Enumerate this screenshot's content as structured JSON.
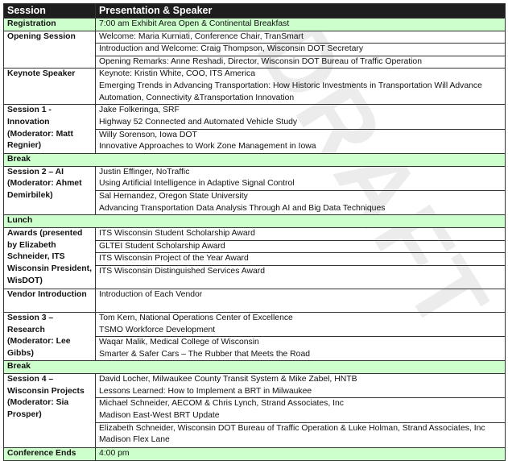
{
  "watermark": "DRAFT",
  "header": {
    "session": "Session",
    "presentation": "Presentation & Speaker"
  },
  "rows": [
    {
      "type": "highlight",
      "session": "Registration",
      "items": [
        [
          "7:00 am Exhibit Area Open & Continental Breakfast"
        ]
      ]
    },
    {
      "type": "section",
      "session": "Opening Session",
      "items": [
        [
          "Welcome: Maria Kurniati, Conference Chair, TranSmart"
        ],
        [
          "Introduction and Welcome: Craig Thompson, Wisconsin DOT Secretary"
        ],
        [
          "Opening Remarks: Anne Reshadi, Director, Wisconsin DOT Bureau of Traffic Operation"
        ]
      ]
    },
    {
      "type": "section",
      "session": "Keynote Speaker",
      "items": [
        [
          "Keynote: Kristin White, COO, ITS America",
          "Emerging Trends in Advancing Transportation: How Historic Investments in Transportation Will Advance Automation, Connectivity &Transportation Innovation"
        ]
      ]
    },
    {
      "type": "section",
      "session": "Session 1 - Innovation (Moderator: Matt Regnier)",
      "items": [
        [
          "Jake Folkeringa, SRF",
          "Highway 52 Connected and Automated Vehicle Study"
        ],
        [
          "Willy Sorenson, Iowa DOT",
          "Innovative Approaches to Work Zone Management in Iowa"
        ]
      ]
    },
    {
      "type": "break",
      "session": "Break"
    },
    {
      "type": "section",
      "session": "Session 2 – AI (Moderator:  Ahmet Demirbilek)",
      "items": [
        [
          "Justin Effinger, NoTraffic",
          "Using Artificial Intelligence in Adaptive Signal Control"
        ],
        [
          "Sal Hernandez, Oregon State University",
          "Advancing Transportation Data Analysis Through AI and Big Data Techniques"
        ]
      ]
    },
    {
      "type": "break",
      "session": "Lunch"
    },
    {
      "type": "section",
      "session": "Awards (presented by Elizabeth Schneider, ITS Wisconsin President, WisDOT)",
      "items": [
        [
          "ITS Wisconsin Student Scholarship Award"
        ],
        [
          "GLTEI Student Scholarship Award"
        ],
        [
          "ITS Wisconsin Project of the Year Award"
        ],
        [
          "ITS Wisconsin Distinguished Services Award"
        ]
      ]
    },
    {
      "type": "section",
      "session": "Vendor Introduction",
      "items": [
        [
          "Introduction of Each Vendor"
        ]
      ]
    },
    {
      "type": "section",
      "session": "Session 3 – Research (Moderator: Lee Gibbs)",
      "items": [
        [
          "Tom Kern, National Operations Center of Excellence",
          "TSMO Workforce Development"
        ],
        [
          "Waqar Malik, Medical College of Wisconsin",
          "Smarter & Safer Cars – The Rubber that Meets the Road"
        ]
      ]
    },
    {
      "type": "break",
      "session": "Break"
    },
    {
      "type": "section",
      "session": "Session 4 – Wisconsin Projects (Moderator: Sia Prosper)",
      "items": [
        [
          "David Locher, Milwaukee County Transit System & Mike Zabel, HNTB",
          "Lessons Learned: How to Implement a BRT in Milwaukee"
        ],
        [
          "Michael Schneider, AECOM & Chris Lynch, Strand Associates, Inc",
          "Madison East-West BRT Update"
        ],
        [
          "Elizabeth Schneider, Wisconsin DOT Bureau of Traffic Operation & Luke Holman, Strand Associates, Inc",
          "Madison Flex Lane"
        ]
      ]
    },
    {
      "type": "highlight",
      "session": "Conference Ends",
      "items": [
        [
          "4:00 pm"
        ]
      ]
    }
  ]
}
